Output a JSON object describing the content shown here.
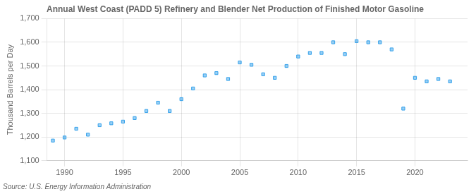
{
  "chart_data": {
    "type": "scatter",
    "title": "Annual West Coast (PADD 5) Refinery and Blender Net Production of Finished Motor Gasoline",
    "ylabel": "Thousand Barrels per Day",
    "annotations": [
      "Source: U.S. Energy Information Administration"
    ],
    "marker": "square",
    "x": [
      1989,
      1990,
      1991,
      1992,
      1993,
      1994,
      1995,
      1996,
      1997,
      1998,
      1999,
      2000,
      2001,
      2002,
      2003,
      2004,
      2005,
      2006,
      2007,
      2008,
      2009,
      2010,
      2011,
      2012,
      2013,
      2014,
      2015,
      2016,
      2017,
      2018,
      2019,
      2020,
      2021,
      2022,
      2023
    ],
    "values": [
      1185,
      1198,
      1235,
      1210,
      1250,
      1258,
      1265,
      1280,
      1310,
      1345,
      1310,
      1360,
      1405,
      1460,
      1470,
      1445,
      1515,
      1505,
      1465,
      1450,
      1500,
      1540,
      1555,
      1555,
      1600,
      1550,
      1605,
      1600,
      1600,
      1570,
      1320,
      1450,
      1435,
      1445,
      1435
    ],
    "xlim": [
      1988.5,
      2024.5
    ],
    "xticks": [
      1990,
      1995,
      2000,
      2005,
      2010,
      2015,
      2020
    ],
    "ylim": [
      1100,
      1700
    ],
    "yticks": [
      {
        "value": 1100,
        "label": "1,100"
      },
      {
        "value": 1200,
        "label": "1,200"
      },
      {
        "value": 1300,
        "label": "1,300"
      },
      {
        "value": 1400,
        "label": "1,400"
      },
      {
        "value": 1500,
        "label": "1,500"
      },
      {
        "value": 1600,
        "label": "1,600"
      },
      {
        "value": 1700,
        "label": "1,700"
      }
    ],
    "grid": true
  }
}
